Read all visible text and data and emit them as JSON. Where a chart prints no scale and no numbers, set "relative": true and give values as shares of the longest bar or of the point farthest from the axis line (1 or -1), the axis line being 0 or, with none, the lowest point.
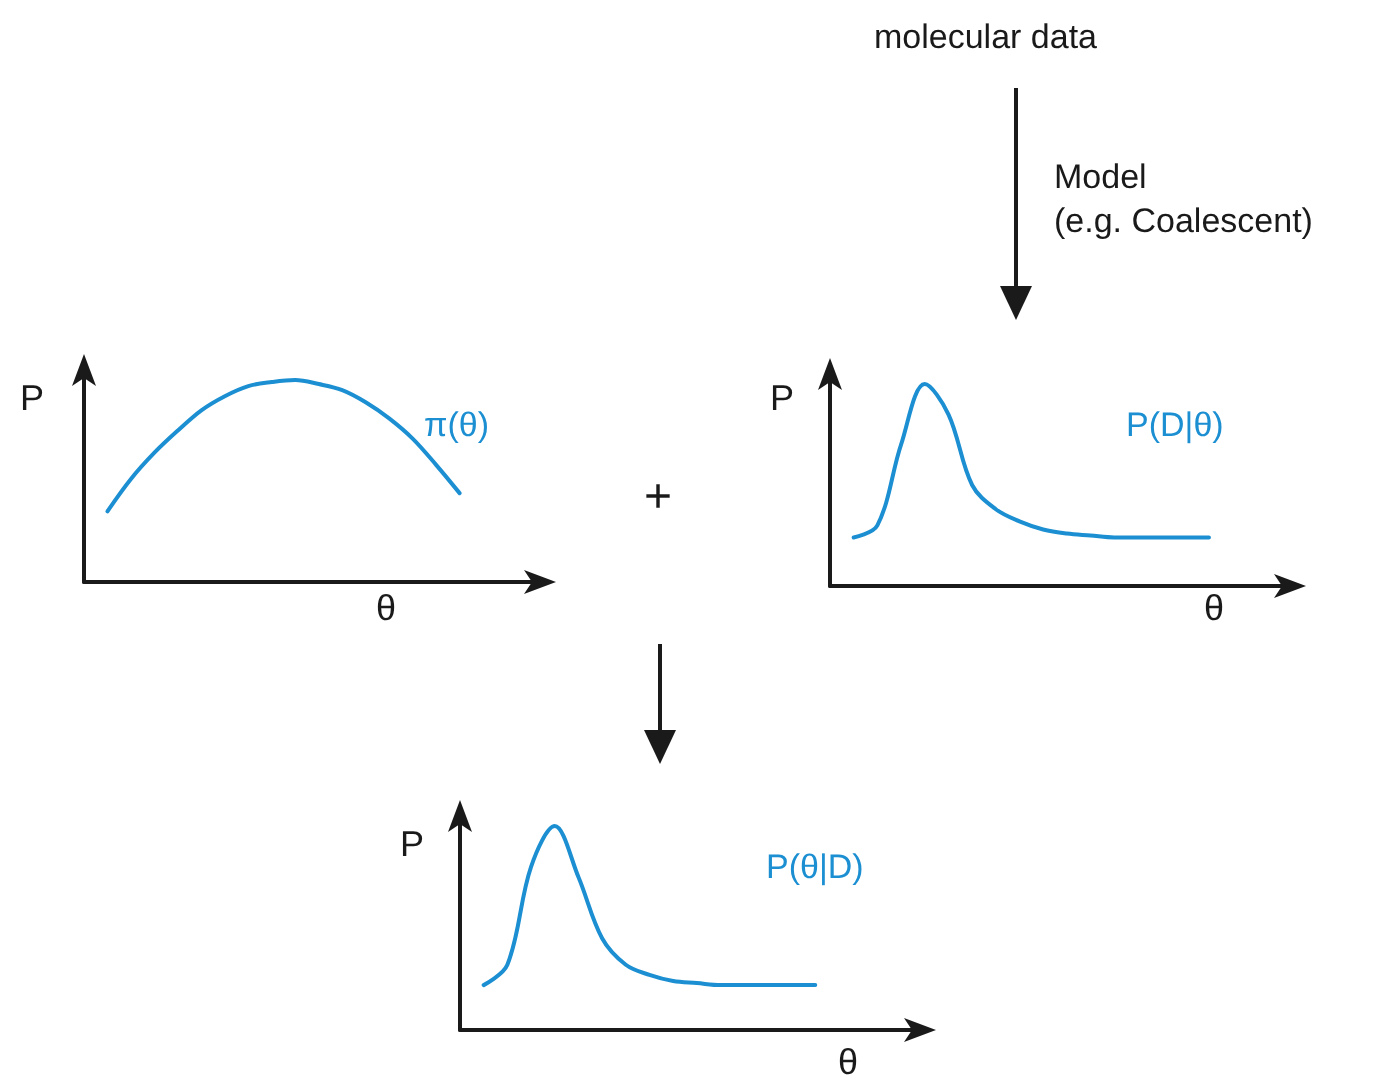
{
  "chart_data": [
    {
      "type": "line",
      "title": "π(θ)",
      "xlabel": "θ",
      "ylabel": "P",
      "relative": true,
      "marker": "none",
      "annotations": [
        "+"
      ],
      "categories": [
        null,
        null,
        null,
        null,
        null,
        null,
        null,
        null,
        null,
        null,
        null,
        null,
        null,
        null,
        null,
        null,
        null,
        null,
        null,
        null
      ],
      "series": [
        {
          "color": "#1b8fd2",
          "values": [
            null,
            0.35,
            0.51,
            0.64,
            0.75,
            0.85,
            0.92,
            0.97,
            0.99,
            1,
            0.98,
            0.95,
            0.89,
            0.81,
            0.71,
            0.58,
            0.44,
            null,
            null,
            null
          ]
        }
      ]
    },
    {
      "type": "line",
      "title": "P(D|θ)",
      "xlabel": "θ",
      "ylabel": "P",
      "relative": true,
      "marker": "none",
      "annotations": [
        "molecular data",
        "Model\n(e.g. Coalescent)"
      ],
      "categories": [
        null,
        null,
        null,
        null,
        null,
        null,
        null,
        null,
        null,
        null,
        null,
        null,
        null,
        null,
        null,
        null,
        null,
        null,
        null,
        null
      ],
      "series": [
        {
          "color": "#1b8fd2",
          "values": [
            null,
            0.24,
            0.3,
            0.7,
            1,
            0.85,
            0.5,
            0.38,
            0.32,
            0.28,
            0.26,
            0.25,
            0.24,
            0.24,
            0.24,
            0.24,
            0.24,
            null,
            null,
            null
          ]
        }
      ]
    },
    {
      "type": "line",
      "title": "P(θ|D)",
      "xlabel": "θ",
      "ylabel": "P",
      "relative": true,
      "marker": "none",
      "categories": [
        null,
        null,
        null,
        null,
        null,
        null,
        null,
        null,
        null,
        null,
        null,
        null,
        null,
        null,
        null,
        null,
        null,
        null,
        null,
        null
      ],
      "series": [
        {
          "color": "#1b8fd2",
          "values": [
            null,
            0.22,
            0.32,
            0.8,
            1,
            0.75,
            0.45,
            0.32,
            0.27,
            0.24,
            0.23,
            0.22,
            0.22,
            0.22,
            0.22,
            0.22,
            null,
            null,
            null,
            null
          ]
        }
      ]
    }
  ]
}
